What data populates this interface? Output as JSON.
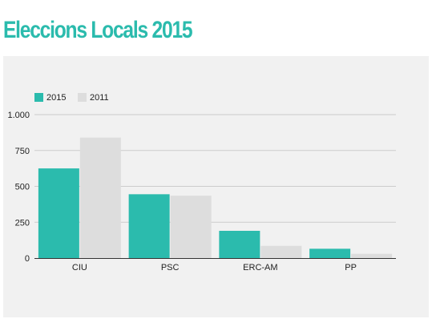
{
  "header": {
    "title": "Eleccions Locals 2015"
  },
  "colors": {
    "accent": "#2bbbad",
    "series_2015": "#2bbbad",
    "series_2011": "#dddddd",
    "panel_background": "#f1f1f1",
    "gridline": "#cccccc",
    "baseline": "#333333"
  },
  "chart_data": {
    "type": "bar",
    "categories": [
      "CIU",
      "PSC",
      "ERC-AM",
      "PP"
    ],
    "series": [
      {
        "name": "2015",
        "values": [
          625,
          445,
          190,
          65
        ]
      },
      {
        "name": "2011",
        "values": [
          840,
          435,
          85,
          30
        ]
      }
    ],
    "ylim": [
      0,
      1000
    ],
    "yticks": [
      0,
      250,
      500,
      750,
      1000
    ],
    "ytick_labels": [
      "0",
      "250",
      "500",
      "750",
      "1.000"
    ],
    "grid": true,
    "legend_position": "top-left"
  }
}
